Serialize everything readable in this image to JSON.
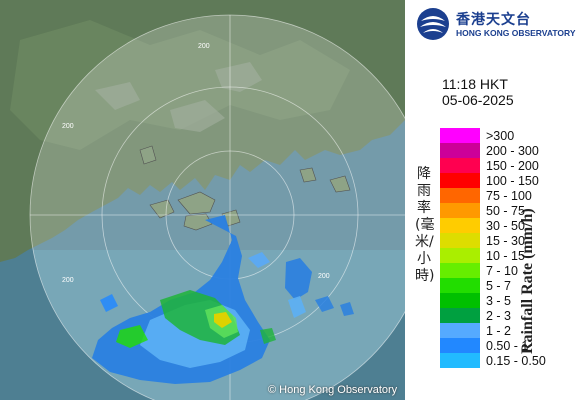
{
  "logo": {
    "chinese_name": "香港天文台",
    "english_name": "HONG KONG OBSERVATORY"
  },
  "observation": {
    "time": "11:18 HKT",
    "date": "05-06-2025"
  },
  "legend": {
    "title_chinese": "降雨率(毫米/小時)",
    "title_english": "Rainfall Rate (mm/h)",
    "classes": [
      {
        "label": ">300",
        "color": "#ff00ff"
      },
      {
        "label": "200 - 300",
        "color": "#cc0099"
      },
      {
        "label": "150 - 200",
        "color": "#ff0050"
      },
      {
        "label": "100 - 150",
        "color": "#ff0000"
      },
      {
        "label": "75 - 100",
        "color": "#ff6600"
      },
      {
        "label": "50 - 75",
        "color": "#ff9900"
      },
      {
        "label": "30 - 50",
        "color": "#ffcc00"
      },
      {
        "label": "15 - 30",
        "color": "#dddd00"
      },
      {
        "label": "10 - 15",
        "color": "#aaee00"
      },
      {
        "label": "7 - 10",
        "color": "#66ee00"
      },
      {
        "label": "5 - 7",
        "color": "#22dd00"
      },
      {
        "label": "3 - 5",
        "color": "#00c000"
      },
      {
        "label": "2 - 3",
        "color": "#00a040"
      },
      {
        "label": "1 - 2",
        "color": "#55aaff"
      },
      {
        "label": "0.50 - 1",
        "color": "#2288ff"
      },
      {
        "label": "0.15 - 0.50",
        "color": "#22bbff"
      }
    ]
  },
  "map": {
    "range_ring_labels": [
      "200",
      "200",
      "200",
      "200"
    ],
    "copyright": "© Hong Kong Observatory"
  }
}
